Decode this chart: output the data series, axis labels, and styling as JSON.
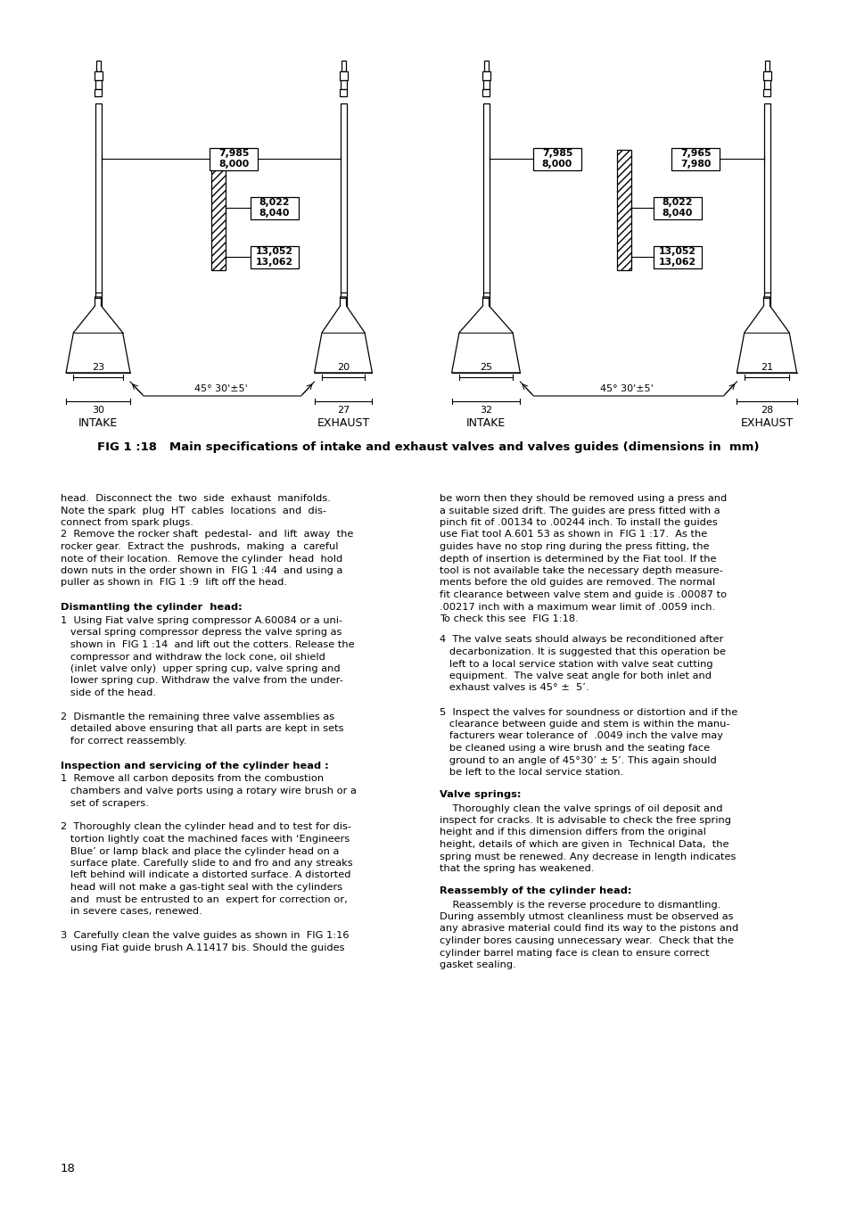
{
  "bg_color": "#ffffff",
  "fig_caption": "FIG 1 :18   Main specifications of intake and exhaust valves and valves guides (dimensions in  mm)",
  "label_intake1": "INTAKE",
  "label_exhaust1": "EXHAUST",
  "label_intake2": "INTAKE",
  "label_exhaust2": "EXHAUST",
  "page_number": "18",
  "dim_L_stem": "7,985\n8,000",
  "dim_L_guide_mid": "8,022\n8,040",
  "dim_L_guide_bot": "13,052\n13,062",
  "dim_R_intake_stem": "7,985\n8,000",
  "dim_R_exhaust_stem": "7,965\n7,980",
  "dim_R_guide_mid": "8,022\n8,040",
  "dim_R_guide_bot": "13,052\n13,062",
  "angle_label": "45° 30'±5'",
  "L_intake_w1": "23",
  "L_intake_w2": "30",
  "L_exhaust_w1": "20",
  "L_exhaust_w2": "27",
  "R_intake_w1": "25",
  "R_intake_w2": "32",
  "R_exhaust_w1": "21",
  "R_exhaust_w2": "28",
  "section_dismantling_head": "Dismantling the cylinder  head:",
  "section_inspection_head": "Inspection and servicing of the cylinder head :",
  "section_valve_springs": "Valve springs:",
  "section_reassembly": "Reassembly of the cylinder head:"
}
